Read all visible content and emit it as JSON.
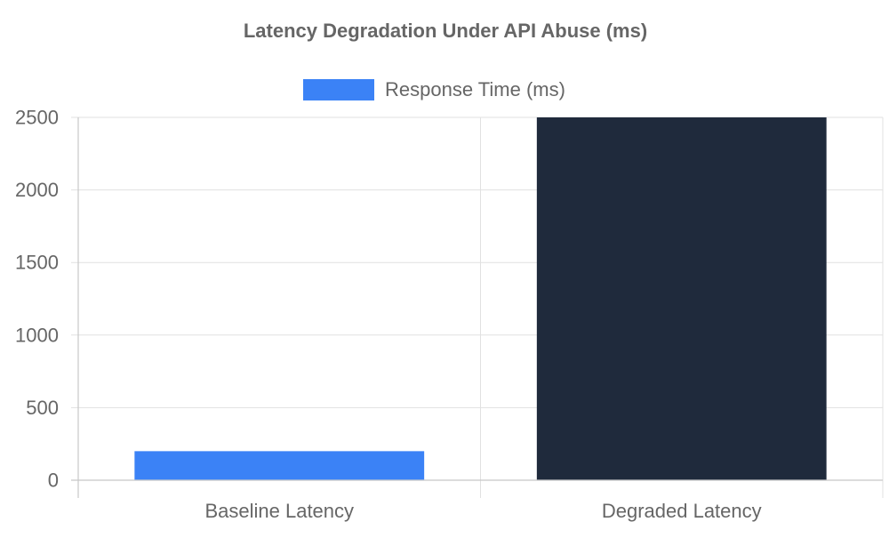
{
  "chart_data": {
    "type": "bar",
    "title": "Latency Degradation Under API Abuse (ms)",
    "xlabel": "",
    "ylabel": "",
    "categories": [
      "Baseline Latency",
      "Degraded Latency"
    ],
    "series": [
      {
        "name": "Response Time (ms)",
        "values": [
          200,
          2500
        ]
      }
    ],
    "bar_colors": [
      "#3b82f6",
      "#1f2a3c"
    ],
    "legend_color": "#3b82f6",
    "ylim": [
      0,
      2500
    ],
    "yticks": [
      "0",
      "500",
      "1000",
      "1500",
      "2000",
      "2500"
    ],
    "grid": true,
    "legend_position": "top"
  }
}
